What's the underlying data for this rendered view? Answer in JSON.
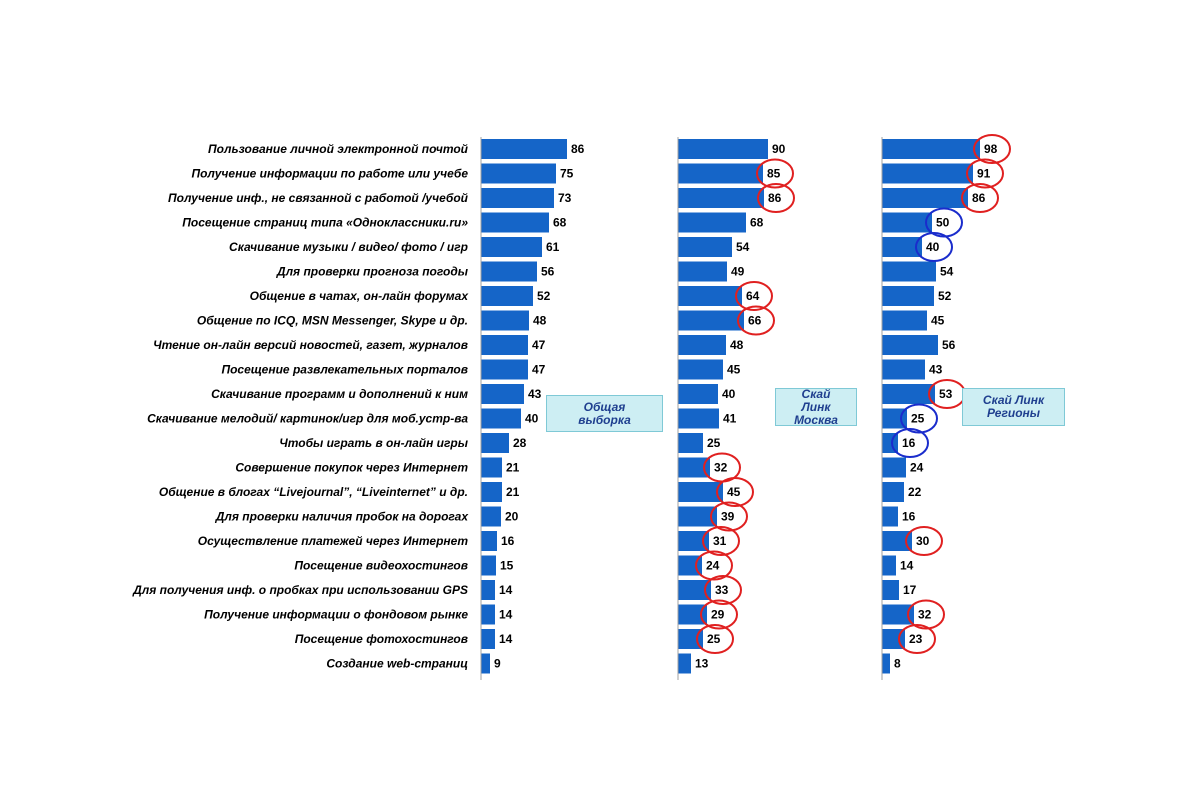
{
  "colors": {
    "bar": "#1565c8",
    "axis": "#a0a0a0",
    "highlight_up": "#e02020",
    "highlight_down": "#1a2ccc"
  },
  "chart_data": {
    "type": "bar",
    "orientation": "horizontal",
    "categories": [
      "Пользование личной электронной почтой",
      "Получение информации по работе или учебе",
      "Получение инф., не связанной с работой /учебой",
      "Посещение страниц типа «Одноклассники.ru»",
      "Скачивание музыки / видео/ фото / игр",
      "Для проверки прогноза погоды",
      "Общение в чатах, он-лайн форумах",
      "Общение по ICQ, MSN Messenger, Skype и др.",
      "Чтение он-лайн версий новостей, газет, журналов",
      "Посещение  развлекательных порталов",
      "Скачивание программ и дополнений к ним",
      "Скачивание мелодий/ картинок/игр для моб.устр-ва",
      "Чтобы играть в он-лайн игры",
      "Совершение покупок через Интернет",
      "Общение в блогах “Livejournal”, “Liveinternet” и др.",
      "Для проверки наличия пробок на дорогах",
      "Осуществление платежей через Интернет",
      "Посещение видеохостингов",
      "Для получения инф. о пробках при использовании GPS",
      "Получение информации о фондовом рынке",
      "Посещение фотохостингов",
      "Создание web-страниц"
    ],
    "series": [
      {
        "name": "Общая выборка",
        "values": [
          86,
          75,
          73,
          68,
          61,
          56,
          52,
          48,
          47,
          47,
          43,
          40,
          28,
          21,
          21,
          20,
          16,
          15,
          14,
          14,
          14,
          9
        ],
        "circled": []
      },
      {
        "name": "Скай Линк Москва",
        "values": [
          90,
          85,
          86,
          68,
          54,
          49,
          64,
          66,
          48,
          45,
          40,
          41,
          25,
          32,
          45,
          39,
          31,
          24,
          33,
          29,
          25,
          13
        ],
        "circled": [
          {
            "index": 1,
            "color": "red"
          },
          {
            "index": 2,
            "color": "red"
          },
          {
            "index": 6,
            "color": "red"
          },
          {
            "index": 7,
            "color": "red"
          },
          {
            "index": 13,
            "color": "red"
          },
          {
            "index": 14,
            "color": "red"
          },
          {
            "index": 15,
            "color": "red"
          },
          {
            "index": 16,
            "color": "red"
          },
          {
            "index": 17,
            "color": "red"
          },
          {
            "index": 18,
            "color": "red"
          },
          {
            "index": 19,
            "color": "red"
          },
          {
            "index": 20,
            "color": "red"
          }
        ]
      },
      {
        "name": "Скай Линк Регионы",
        "values": [
          98,
          91,
          86,
          50,
          40,
          54,
          52,
          45,
          56,
          43,
          53,
          25,
          16,
          24,
          22,
          16,
          30,
          14,
          17,
          32,
          23,
          8
        ],
        "circled": [
          {
            "index": 0,
            "color": "red"
          },
          {
            "index": 1,
            "color": "red"
          },
          {
            "index": 2,
            "color": "red"
          },
          {
            "index": 3,
            "color": "blue"
          },
          {
            "index": 4,
            "color": "blue"
          },
          {
            "index": 10,
            "color": "red"
          },
          {
            "index": 11,
            "color": "blue"
          },
          {
            "index": 12,
            "color": "blue"
          },
          {
            "index": 16,
            "color": "red"
          },
          {
            "index": 19,
            "color": "red"
          },
          {
            "index": 20,
            "color": "red"
          }
        ]
      }
    ],
    "legend_boxes": [
      {
        "series": 0,
        "lines": [
          "Общая",
          "выборка"
        ]
      },
      {
        "series": 1,
        "lines": [
          "Скай",
          "Линк",
          "Москва"
        ]
      },
      {
        "series": 2,
        "lines": [
          "Скай Линк",
          "Регионы"
        ]
      }
    ],
    "title": "",
    "xlabel": "",
    "ylabel": "",
    "grid": false
  }
}
